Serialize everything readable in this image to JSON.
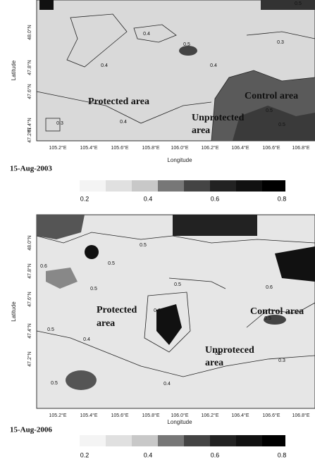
{
  "panels": [
    {
      "y_ticks": [
        "48.0°N",
        "47.8°N",
        "47.6°N",
        "47.4°N",
        "47.2°N"
      ],
      "x_ticks": [
        "105.2°E",
        "105.4°E",
        "105.6°E",
        "105.8°E",
        "106.0°E",
        "106.2°E",
        "106.4°E",
        "106.6°E",
        "106.8°E"
      ],
      "x_label": "Longitude",
      "y_label": "Latitude",
      "date": "15-Aug-2003",
      "area_labels": [
        "Protected area",
        "Unprotected",
        "area",
        "Control area"
      ],
      "contour_labels": [
        "0.5",
        "0.4",
        "0.5",
        "0.4",
        "0.4",
        "0.3",
        "0.3",
        "0.4",
        "0.5",
        "0.5"
      ],
      "colorbar_ticks": [
        "0.2",
        "0.4",
        "0.6",
        "0.8"
      ]
    },
    {
      "y_ticks": [
        "48.0°N",
        "47.8°N",
        "47.6°N",
        "47.4°N",
        "47.2°N"
      ],
      "x_ticks": [
        "105.2°E",
        "105.4°E",
        "105.6°E",
        "105.8°E",
        "106.0°E",
        "106.2°E",
        "106.4°E",
        "106.6°E",
        "106.8°E"
      ],
      "x_label": "Longitude",
      "y_label": "Latitude",
      "date": "15-Aug-2006",
      "area_labels": [
        "Protected",
        "area",
        "Unproteced",
        "area",
        "Control area"
      ],
      "contour_labels": [
        "0.5",
        "0.6",
        "0.5",
        "0.5",
        "0.6",
        "0.5",
        "0.6",
        "0.5",
        "0.4",
        "0.5",
        "0.3",
        "0.5",
        "0.4",
        "0.5"
      ],
      "colorbar_ticks": [
        "0.2",
        "0.4",
        "0.6",
        "0.8"
      ]
    }
  ]
}
